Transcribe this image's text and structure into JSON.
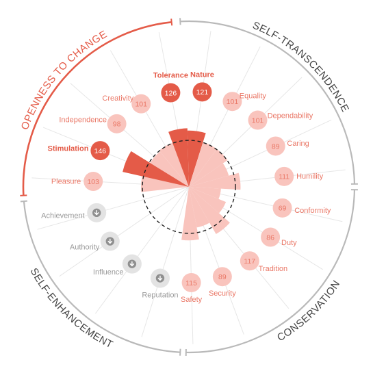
{
  "chart_data": {
    "type": "radial-bar",
    "baseline_value": 100,
    "colors": {
      "strong": "#e45b48",
      "mild": "#f9c4bd",
      "mild_text": "#ea7766",
      "neutral": "#b0b0b0",
      "neutral_text": "#9a9a9a",
      "neutral_badge": "#e3e3e3",
      "ring": "#b9b9b9",
      "axis": "#e6e6e6"
    },
    "groups": [
      {
        "name": "SELF-TRANSCENDENCE",
        "highlight": false
      },
      {
        "name": "CONSERVATION",
        "highlight": false
      },
      {
        "name": "SELF-ENHANCEMENT",
        "highlight": false
      },
      {
        "name": "OPENNESS TO CHANGE",
        "highlight": true
      }
    ],
    "values": [
      {
        "label": "Nature",
        "value": 121,
        "level": "strong",
        "icon": null
      },
      {
        "label": "Equality",
        "value": 101,
        "level": "mild",
        "icon": null
      },
      {
        "label": "Dependability",
        "value": 101,
        "level": "mild",
        "icon": null
      },
      {
        "label": "Caring",
        "value": 89,
        "level": "mild",
        "icon": null
      },
      {
        "label": "Humility",
        "value": 111,
        "level": "mild",
        "icon": null
      },
      {
        "label": "Conformity",
        "value": 69,
        "level": "mild",
        "icon": null
      },
      {
        "label": "Duty",
        "value": 86,
        "level": "mild",
        "icon": null
      },
      {
        "label": "Tradition",
        "value": 117,
        "level": "mild",
        "icon": null
      },
      {
        "label": "Security",
        "value": 89,
        "level": "mild",
        "icon": null
      },
      {
        "label": "Safety",
        "value": 115,
        "level": "mild",
        "icon": null
      },
      {
        "label": "Reputation",
        "value": null,
        "level": "neutral",
        "icon": "arrow-down-icon"
      },
      {
        "label": "Influence",
        "value": null,
        "level": "neutral",
        "icon": "arrow-down-icon"
      },
      {
        "label": "Authority",
        "value": null,
        "level": "neutral",
        "icon": "arrow-down-icon"
      },
      {
        "label": "Achievement",
        "value": null,
        "level": "neutral",
        "icon": "arrow-down-icon"
      },
      {
        "label": "Pleasure",
        "value": 103,
        "level": "mild",
        "icon": null
      },
      {
        "label": "Stimulation",
        "value": 146,
        "level": "strong",
        "icon": null
      },
      {
        "label": "Independence",
        "value": 98,
        "level": "mild",
        "icon": null
      },
      {
        "label": "Creativity",
        "value": 101,
        "level": "mild",
        "icon": null
      },
      {
        "label": "Tolerance",
        "value": 126,
        "level": "strong",
        "icon": null
      }
    ]
  }
}
